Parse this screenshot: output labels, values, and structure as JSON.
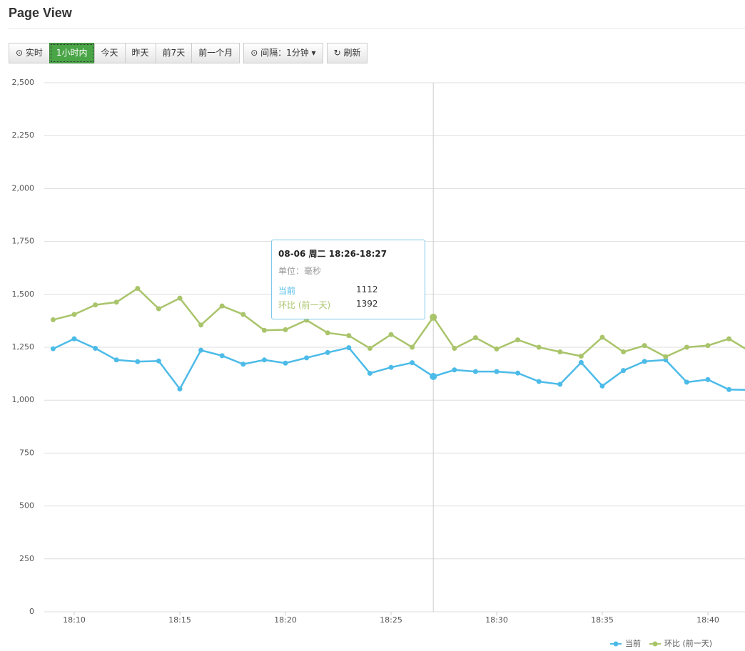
{
  "header": {
    "title": "Page View"
  },
  "toolbar": {
    "range_buttons": [
      "实时",
      "1小时内",
      "今天",
      "昨天",
      "前7天",
      "前一个月"
    ],
    "active": 1,
    "interval": "间隔：1分钟",
    "refresh": "刷新"
  },
  "chart_data": {
    "type": "line",
    "categories": [
      null,
      "18:10",
      null,
      null,
      null,
      null,
      "18:15",
      null,
      null,
      null,
      null,
      "18:20",
      null,
      null,
      null,
      null,
      "18:25",
      null,
      null,
      null,
      null,
      "18:30",
      null,
      null,
      null,
      null,
      "18:35",
      null,
      null,
      null,
      null,
      "18:40",
      null,
      null
    ],
    "series": [
      {
        "name": "当前",
        "color": "#4cbbe8",
        "values": [
          1243,
          1290,
          1245,
          1190,
          1182,
          1185,
          1053,
          1236,
          1210,
          1170,
          1190,
          1175,
          1200,
          1225,
          1248,
          1127,
          1155,
          1177,
          1112,
          1143,
          1135,
          1135,
          1128,
          1088,
          1075,
          1178,
          1067,
          1140,
          1183,
          1190,
          1085,
          1097,
          1050,
          1048
        ]
      },
      {
        "name": "环比 (前一天)",
        "color": "#a9c46a",
        "values": [
          1380,
          1405,
          1450,
          1463,
          1528,
          1432,
          1482,
          1355,
          1445,
          1405,
          1330,
          1333,
          1378,
          1318,
          1305,
          1245,
          1310,
          1250,
          1392,
          1245,
          1295,
          1242,
          1285,
          1250,
          1228,
          1208,
          1297,
          1228,
          1258,
          1205,
          1250,
          1258,
          1290,
          1230
        ]
      }
    ],
    "ylim": [
      0,
      2500
    ],
    "yticks": [
      0,
      {
        "value": 250,
        "label": "250"
      },
      500,
      750,
      {
        "value": 1000,
        "label": "1,000"
      },
      {
        "value": 1250,
        "label": "1,250"
      },
      {
        "value": 1500,
        "label": "1,500"
      },
      {
        "value": 1750,
        "label": "1,750"
      },
      {
        "value": 2000,
        "label": "2,000"
      },
      {
        "value": 2250,
        "label": "2,250"
      },
      {
        "value": 2500,
        "label": "2,500"
      }
    ],
    "grid": true,
    "legend": "bottom-right",
    "tooltip": {
      "index": 18,
      "title": "08-06 周二 18:26-18:27",
      "unit": "单位：毫秒"
    }
  }
}
